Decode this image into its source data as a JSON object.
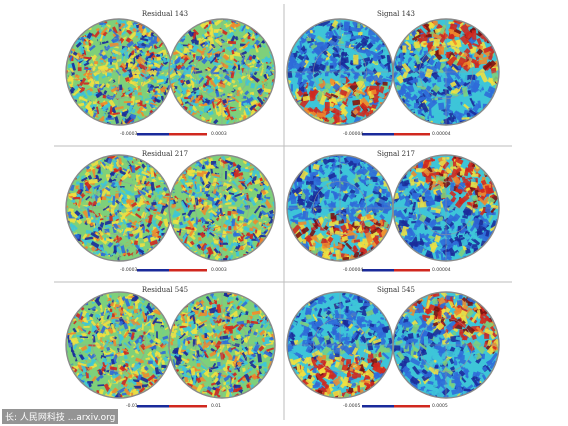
{
  "figure": {
    "panels": [
      {
        "title": "Residual 143",
        "cb_min": "-0.0003",
        "cb_max": "0.0003",
        "style": "residual"
      },
      {
        "title": "Signal 143",
        "cb_min": "-0.00004",
        "cb_max": "0.00004",
        "style": "signal"
      },
      {
        "title": "Residual 217",
        "cb_min": "-0.0003",
        "cb_max": "0.0003",
        "style": "residual"
      },
      {
        "title": "Signal 217",
        "cb_min": "-0.00004",
        "cb_max": "0.00004",
        "style": "signal"
      },
      {
        "title": "Residual 545",
        "cb_min": "-0.01",
        "cb_max": "0.01",
        "style": "residual"
      },
      {
        "title": "Signal 545",
        "cb_min": "-0.0005",
        "cb_max": "0.0005",
        "style": "signal"
      }
    ],
    "colors": {
      "deep_blue": "#1a2a9a",
      "blue": "#2f6bd8",
      "cyan": "#3ec5d8",
      "green": "#7ed07a",
      "yellow": "#f0e040",
      "orange": "#ef8a2c",
      "red": "#d0281f",
      "dark_red": "#7a1010",
      "grid_line": "#9a9a9a",
      "frame": "#bdbdbd"
    }
  },
  "watermark": {
    "text": "长: 人民网科技  ...arxiv.org"
  }
}
